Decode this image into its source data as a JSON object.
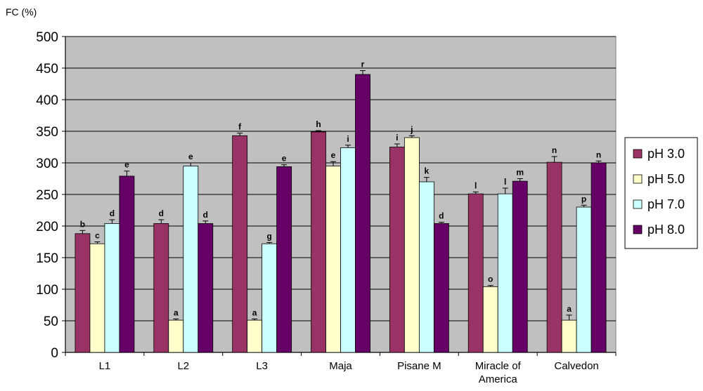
{
  "chart_data": {
    "type": "bar",
    "ylabel": "FC (%)",
    "xlabel": "",
    "ylim": [
      0,
      500
    ],
    "yticks": [
      0,
      50,
      100,
      150,
      200,
      250,
      300,
      350,
      400,
      450,
      500
    ],
    "grid": true,
    "legend_position": "right",
    "categories": [
      "L1",
      "L2",
      "L3",
      "Maja",
      "Pisane M",
      "Miracle of America",
      "Calvedon"
    ],
    "series": [
      {
        "name": "pH 3.0",
        "color": "#993366",
        "values": [
          188,
          204,
          343,
          349,
          325,
          251,
          301
        ],
        "errors": [
          5,
          6,
          4,
          2,
          5,
          3,
          9
        ],
        "letters": [
          "b",
          "d",
          "f",
          "h",
          "i",
          "l",
          "n"
        ]
      },
      {
        "name": "pH 5.0",
        "color": "#FFFFCC",
        "values": [
          172,
          51,
          51,
          295,
          340,
          104,
          51
        ],
        "errors": [
          3,
          2,
          2,
          7,
          3,
          2,
          8
        ],
        "letters": [
          "c",
          "a",
          "a",
          "e",
          "j",
          "o",
          "a"
        ]
      },
      {
        "name": "pH 7.0",
        "color": "#CCFFFF",
        "values": [
          204,
          295,
          172,
          324,
          270,
          251,
          230
        ],
        "errors": [
          6,
          5,
          2,
          4,
          7,
          9,
          3
        ],
        "letters": [
          "d",
          "e",
          "g",
          "i",
          "k",
          "l",
          "p"
        ]
      },
      {
        "name": "pH 8.0",
        "color": "#660066",
        "values": [
          279,
          204,
          294,
          440,
          204,
          271,
          300
        ],
        "errors": [
          8,
          4,
          3,
          6,
          2,
          4,
          3
        ],
        "letters": [
          "e",
          "d",
          "e",
          "r",
          "d",
          "m",
          "n"
        ]
      }
    ]
  },
  "colors": {
    "plot_background": "#C0C0C0",
    "gridline": "#000000"
  }
}
